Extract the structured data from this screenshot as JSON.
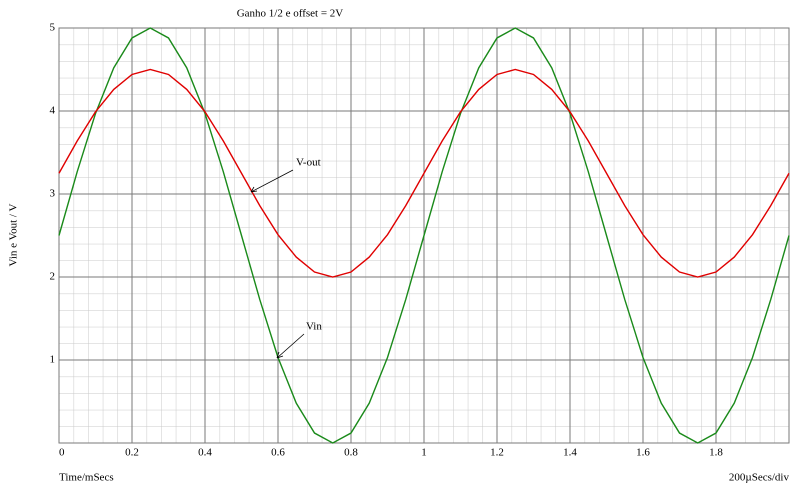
{
  "chart_data": {
    "type": "line",
    "title": "Ganho 1/2 e offset = 2V",
    "y_label": "Vin e Vout / V",
    "x_label": "Time/mSecs",
    "scale_label": "200µSecs/div",
    "annotations": [
      "V-out",
      "Vin"
    ],
    "x": [
      0,
      0.05,
      0.1,
      0.15,
      0.2,
      0.25,
      0.3,
      0.35,
      0.4,
      0.45,
      0.5,
      0.55,
      0.6,
      0.65,
      0.7,
      0.75,
      0.8,
      0.85,
      0.9,
      0.95,
      1,
      1.05,
      1.1,
      1.15,
      1.2,
      1.25,
      1.3,
      1.35,
      1.4,
      1.45,
      1.5,
      1.55,
      1.6,
      1.65,
      1.7,
      1.75,
      1.8,
      1.85,
      1.9,
      1.95,
      2
    ],
    "series": [
      {
        "color": "#1a8a1a",
        "values": [
          2.5,
          3.27,
          3.97,
          4.52,
          4.88,
          5,
          4.88,
          4.52,
          3.97,
          3.27,
          2.5,
          1.73,
          1.03,
          0.48,
          0.12,
          0,
          0.12,
          0.48,
          1.03,
          1.73,
          2.5,
          3.27,
          3.97,
          4.52,
          4.88,
          5,
          4.88,
          4.52,
          3.97,
          3.27,
          2.5,
          1.73,
          1.03,
          0.48,
          0.12,
          0,
          0.12,
          0.48,
          1.03,
          1.73,
          2.5
        ]
      },
      {
        "color": "#e00000",
        "values": [
          3.25,
          3.64,
          3.99,
          4.26,
          4.44,
          4.5,
          4.44,
          4.26,
          3.99,
          3.64,
          3.25,
          2.86,
          2.51,
          2.24,
          2.06,
          2,
          2.06,
          2.24,
          2.51,
          2.86,
          3.25,
          3.64,
          3.99,
          4.26,
          4.44,
          4.5,
          4.44,
          4.26,
          3.99,
          3.64,
          3.25,
          2.86,
          2.51,
          2.24,
          2.06,
          2,
          2.06,
          2.24,
          2.51,
          2.86,
          3.25
        ]
      }
    ],
    "xlim": [
      0,
      2
    ],
    "xticks": [
      0,
      0.2,
      0.4,
      0.6,
      0.8,
      1,
      1.2,
      1.4,
      1.6,
      1.8
    ],
    "ylim": [
      0,
      5
    ],
    "yticks": [
      1,
      2,
      3,
      4,
      5
    ],
    "grid": true
  }
}
